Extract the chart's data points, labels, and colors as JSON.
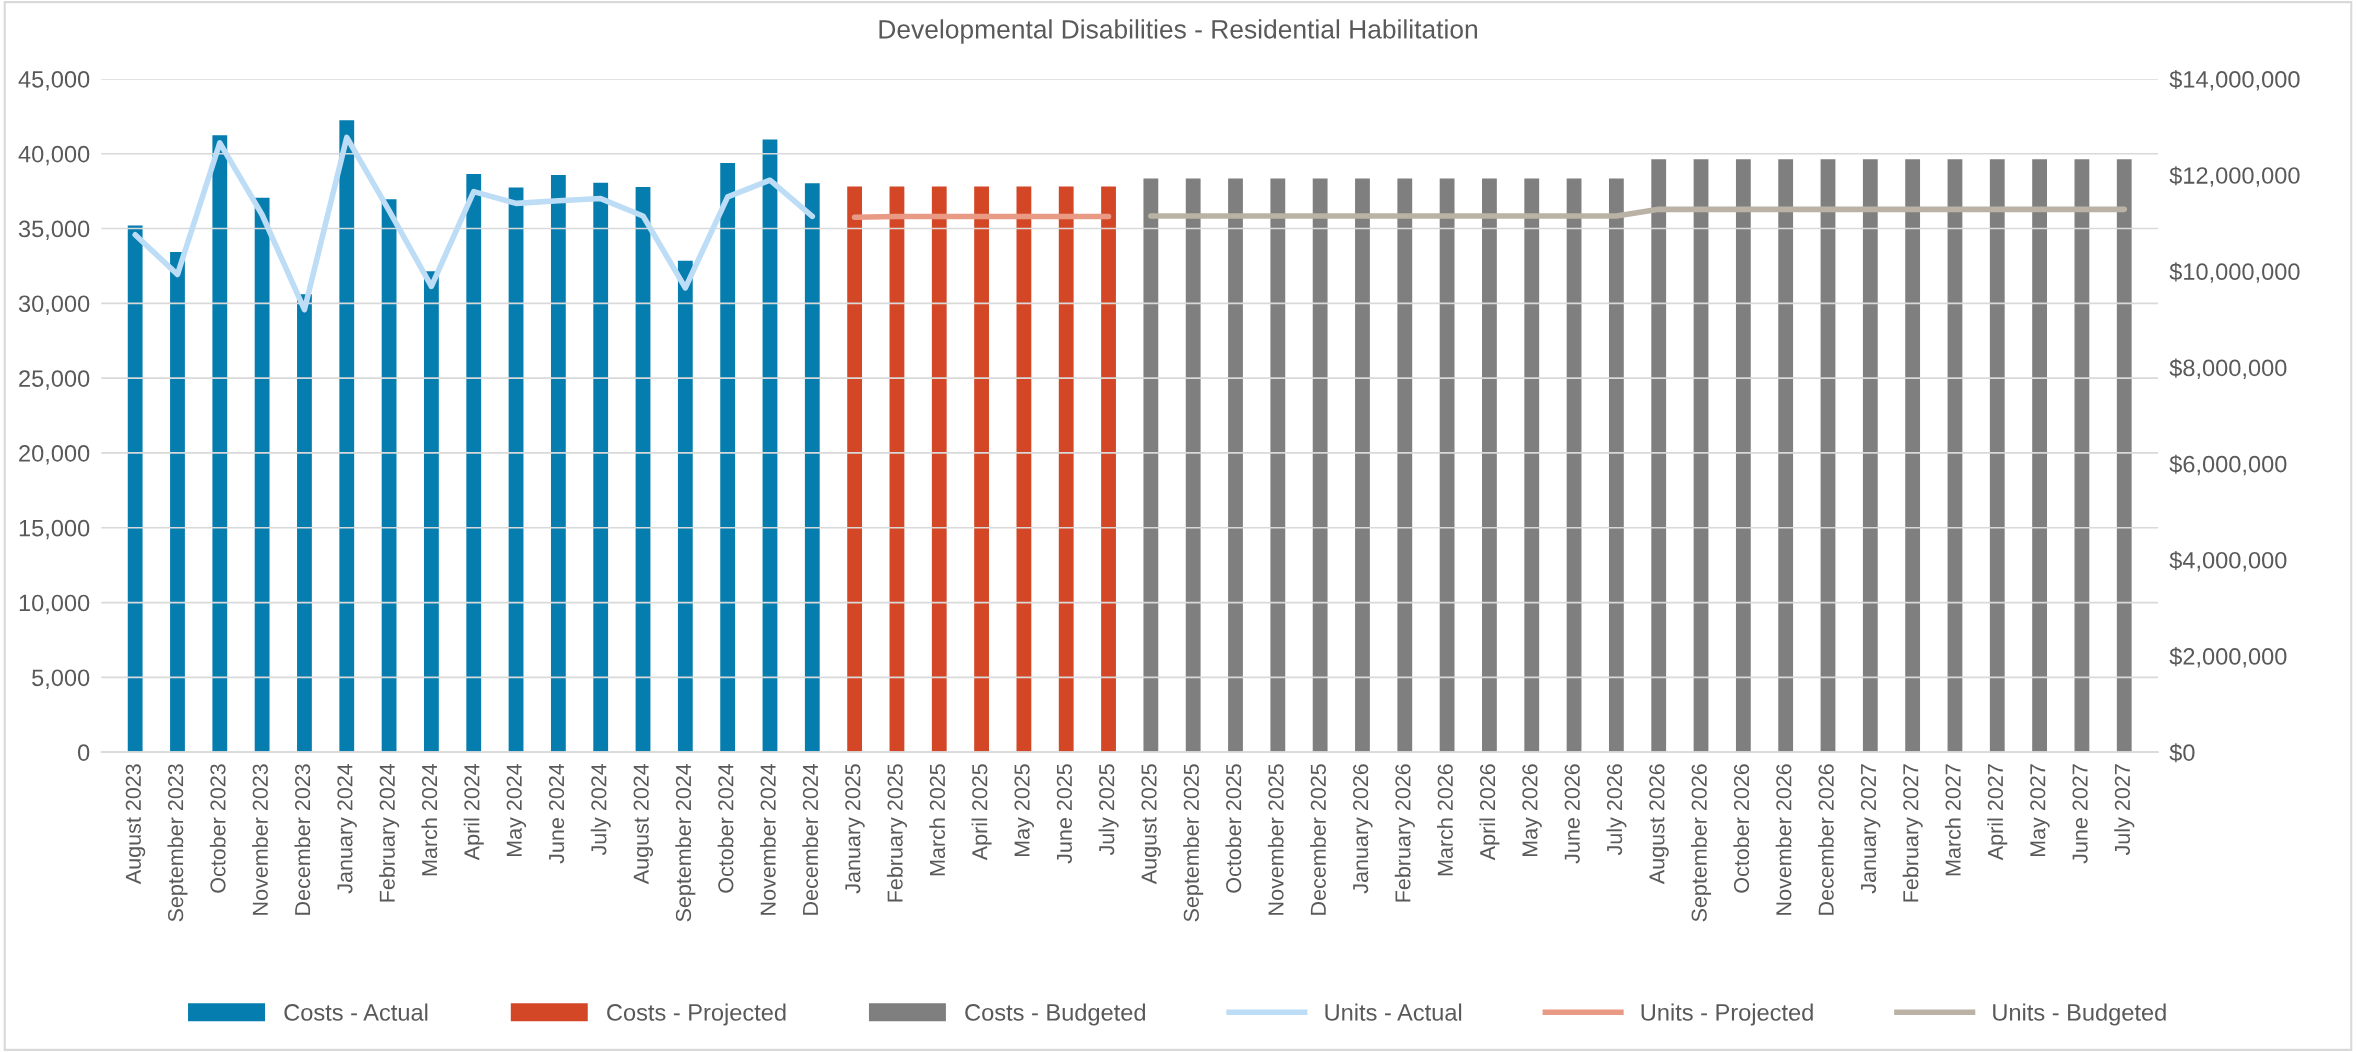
{
  "chart_data": {
    "type": "bar",
    "title": "Developmental Disabilities - Residential Habilitation",
    "categories": [
      "August 2023",
      "September 2023",
      "October 2023",
      "November 2023",
      "December 2023",
      "January 2024",
      "February 2024",
      "March 2024",
      "April 2024",
      "May 2024",
      "June 2024",
      "July 2024",
      "August 2024",
      "September 2024",
      "October 2024",
      "November 2024",
      "December 2024",
      "January 2025",
      "February 2025",
      "March 2025",
      "April 2025",
      "May 2025",
      "June 2025",
      "July 2025",
      "August 2025",
      "September 2025",
      "October 2025",
      "November 2025",
      "December 2025",
      "January 2026",
      "February 2026",
      "March 2026",
      "April 2026",
      "May 2026",
      "June 2026",
      "July 2026",
      "August 2026",
      "September 2026",
      "October 2026",
      "November 2026",
      "December 2026",
      "January 2027",
      "February 2027",
      "March 2027",
      "April 2027",
      "May 2027",
      "June 2027",
      "July 2027"
    ],
    "series": [
      {
        "name": "Costs - Actual",
        "axis": "y2",
        "color": "#057daf",
        "values": [
          10950000,
          10400000,
          12830000,
          11530000,
          9520000,
          13140000,
          11500000,
          10000000,
          12020000,
          11740000,
          12000000,
          11840000,
          11750000,
          10220000,
          12250000,
          12740000,
          11830000,
          null,
          null,
          null,
          null,
          null,
          null,
          null,
          null,
          null,
          null,
          null,
          null,
          null,
          null,
          null,
          null,
          null,
          null,
          null,
          null,
          null,
          null,
          null,
          null,
          null,
          null,
          null,
          null,
          null,
          null,
          null
        ]
      },
      {
        "name": "Costs - Projected",
        "axis": "y2",
        "color": "#d34726",
        "values": [
          null,
          null,
          null,
          null,
          null,
          null,
          null,
          null,
          null,
          null,
          null,
          null,
          null,
          null,
          null,
          null,
          null,
          11760000,
          11760000,
          11760000,
          11760000,
          11760000,
          11760000,
          11760000,
          null,
          null,
          null,
          null,
          null,
          null,
          null,
          null,
          null,
          null,
          null,
          null,
          null,
          null,
          null,
          null,
          null,
          null,
          null,
          null,
          null,
          null,
          null,
          null
        ]
      },
      {
        "name": "Costs - Budgeted",
        "axis": "y2",
        "color": "#7f7f7f",
        "values": [
          null,
          null,
          null,
          null,
          null,
          null,
          null,
          null,
          null,
          null,
          null,
          null,
          null,
          null,
          null,
          null,
          null,
          null,
          null,
          null,
          null,
          null,
          null,
          null,
          11930000,
          11930000,
          11930000,
          11930000,
          11930000,
          11930000,
          11930000,
          11930000,
          11930000,
          11930000,
          11930000,
          11930000,
          12330000,
          12330000,
          12330000,
          12330000,
          12330000,
          12330000,
          12330000,
          12330000,
          12330000,
          12330000,
          12330000,
          12330000
        ]
      },
      {
        "name": "Units - Actual",
        "type": "line",
        "color": "#bddcf5",
        "values": [
          34580,
          31930,
          40730,
          35920,
          29580,
          41090,
          36200,
          31140,
          37470,
          36680,
          36860,
          37000,
          35840,
          31030,
          37110,
          38230,
          35810,
          null,
          null,
          null,
          null,
          null,
          null,
          null,
          null,
          null,
          null,
          null,
          null,
          null,
          null,
          null,
          null,
          null,
          null,
          null,
          null,
          null,
          null,
          null,
          null,
          null,
          null,
          null,
          null,
          null,
          null,
          null
        ]
      },
      {
        "name": "Units - Projected",
        "type": "line",
        "color": "#e99a85",
        "values": [
          null,
          null,
          null,
          null,
          null,
          null,
          null,
          null,
          null,
          null,
          null,
          null,
          null,
          null,
          null,
          null,
          null,
          35750,
          35800,
          35800,
          35800,
          35800,
          35800,
          35800,
          null,
          null,
          null,
          null,
          null,
          null,
          null,
          null,
          null,
          null,
          null,
          null,
          null,
          null,
          null,
          null,
          null,
          null,
          null,
          null,
          null,
          null,
          null,
          null
        ]
      },
      {
        "name": "Units - Budgeted",
        "type": "line",
        "color": "#bab2a5",
        "values": [
          null,
          null,
          null,
          null,
          null,
          null,
          null,
          null,
          null,
          null,
          null,
          null,
          null,
          null,
          null,
          null,
          null,
          null,
          null,
          null,
          null,
          null,
          null,
          null,
          35840,
          35840,
          35840,
          35840,
          35840,
          35840,
          35840,
          35840,
          35840,
          35840,
          35840,
          35840,
          36280,
          36280,
          36280,
          36280,
          36280,
          36280,
          36280,
          36280,
          36280,
          36280,
          36280,
          36280
        ]
      }
    ],
    "ylim": [
      0,
      45000
    ],
    "yticks": [
      {
        "value": 0,
        "label": "0"
      },
      {
        "value": 5000,
        "label": "5,000"
      },
      {
        "value": 10000,
        "label": "10,000"
      },
      {
        "value": 15000,
        "label": "15,000"
      },
      {
        "value": 20000,
        "label": "20,000"
      },
      {
        "value": 25000,
        "label": "25,000"
      },
      {
        "value": 30000,
        "label": "30,000"
      },
      {
        "value": 35000,
        "label": "35,000"
      },
      {
        "value": 40000,
        "label": "40,000"
      },
      {
        "value": 45000,
        "label": "45,000"
      }
    ],
    "y2lim": [
      0,
      14000000
    ],
    "y2ticks": [
      {
        "value": 0,
        "label": "$0"
      },
      {
        "value": 2000000,
        "label": "$2,000,000"
      },
      {
        "value": 4000000,
        "label": "$4,000,000"
      },
      {
        "value": 6000000,
        "label": "$6,000,000"
      },
      {
        "value": 8000000,
        "label": "$8,000,000"
      },
      {
        "value": 10000000,
        "label": "$10,000,000"
      },
      {
        "value": 12000000,
        "label": "$12,000,000"
      },
      {
        "value": 14000000,
        "label": "$14,000,000"
      }
    ],
    "grid": "y",
    "legend": "bottom"
  }
}
